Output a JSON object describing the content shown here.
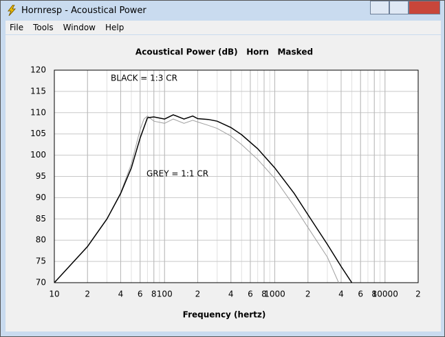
{
  "window": {
    "title": "Hornresp - Acoustical Power",
    "menu": [
      "File",
      "Tools",
      "Window",
      "Help"
    ]
  },
  "chart_data": {
    "type": "line",
    "title": "Acoustical Power (dB)   Horn   Masked",
    "x_label": "Frequency (hertz)",
    "log_x": true,
    "grid": true,
    "xlim": [
      10,
      20000
    ],
    "ylim": [
      70,
      120
    ],
    "xticks": [
      10,
      {
        "value": 20,
        "label": "2"
      },
      {
        "value": 40,
        "label": "4"
      },
      {
        "value": 60,
        "label": "6"
      },
      {
        "value": 80,
        "label": "8"
      },
      100,
      {
        "value": 200,
        "label": "2"
      },
      {
        "value": 400,
        "label": "4"
      },
      {
        "value": 600,
        "label": "6"
      },
      {
        "value": 800,
        "label": "8"
      },
      1000,
      {
        "value": 2000,
        "label": "2"
      },
      {
        "value": 4000,
        "label": "4"
      },
      {
        "value": 6000,
        "label": "6"
      },
      {
        "value": 8000,
        "label": "8"
      },
      10000,
      {
        "value": 20000,
        "label": "2"
      }
    ],
    "yticks": [
      70,
      75,
      80,
      85,
      90,
      95,
      100,
      105,
      110,
      115,
      120
    ],
    "annotations": [
      "BLACK = 1:3 CR",
      "GREY = 1:1 CR"
    ],
    "series": [
      {
        "color": "#a0a0a0",
        "x": [
          10,
          20,
          30,
          40,
          50,
          60,
          65,
          70,
          80,
          100,
          120,
          150,
          180,
          200,
          250,
          300,
          400,
          500,
          700,
          1000,
          1500,
          2000,
          3000,
          3800
        ],
        "values": [
          70,
          78.5,
          85,
          91.2,
          98,
          106,
          108.5,
          109.2,
          108,
          107.5,
          108.5,
          107.5,
          108.2,
          107.8,
          107,
          106.3,
          104.5,
          102.5,
          99,
          94.5,
          88,
          83,
          76,
          70
        ]
      },
      {
        "color": "#000000",
        "x": [
          10,
          20,
          30,
          40,
          50,
          60,
          70,
          80,
          100,
          120,
          150,
          180,
          200,
          250,
          300,
          400,
          500,
          700,
          1000,
          1500,
          2000,
          3000,
          4000,
          5000
        ],
        "values": [
          70,
          78.5,
          85,
          91,
          97,
          104,
          108.8,
          109,
          108.5,
          109.5,
          108.5,
          109.2,
          108.6,
          108.4,
          108,
          106.5,
          104.8,
          101.5,
          97,
          91,
          86,
          79,
          73.8,
          70
        ]
      }
    ]
  }
}
